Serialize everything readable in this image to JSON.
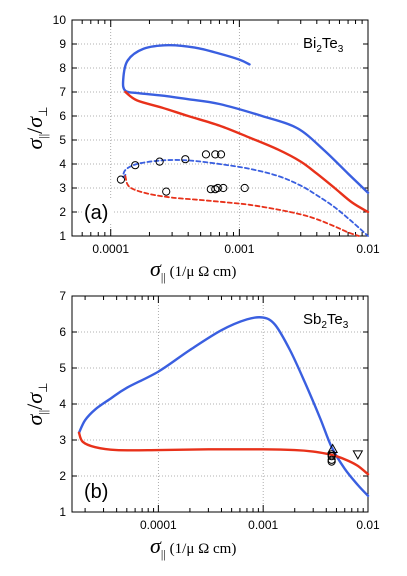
{
  "chart_data": [
    {
      "type": "line",
      "panel_label": "(a)",
      "material": {
        "base": "Bi",
        "sub1": "2",
        "mid": "Te",
        "sub2": "3"
      },
      "xlabel": {
        "symbol": "σ",
        "sub": "||",
        "unit": "(1/μ Ω cm)"
      },
      "ylabel": {
        "num": "σ",
        "num_sub": "||",
        "den": "σ",
        "den_sub": "⊥"
      },
      "xscale": "log",
      "xlim": [
        5e-05,
        0.01
      ],
      "ylim": [
        1,
        10
      ],
      "xticks": [
        {
          "v": 0.0001,
          "label": "0.0001"
        },
        {
          "v": 0.001,
          "label": "0.001"
        },
        {
          "v": 0.01,
          "label": "0.01"
        }
      ],
      "yticks": [
        1,
        2,
        3,
        4,
        5,
        6,
        7,
        8,
        9,
        10
      ],
      "grid": true,
      "series": [
        {
          "color": "#3a5fe0",
          "style": "solid",
          "x": [
            0.0012,
            0.001,
            0.0007,
            0.00045,
            0.00028,
            0.00018,
            0.000135,
            0.000125,
            0.00013,
            0.000165,
            0.00025,
            0.0004,
            0.0007,
            0.0015,
            0.0028,
            0.0045,
            0.007,
            0.01
          ],
          "y": [
            8.15,
            8.35,
            8.6,
            8.85,
            8.95,
            8.8,
            8.3,
            7.5,
            7.05,
            6.95,
            6.85,
            6.7,
            6.5,
            6.0,
            5.5,
            4.6,
            3.6,
            2.8
          ]
        },
        {
          "color": "#e8311a",
          "style": "solid",
          "x": [
            0.00013,
            0.00016,
            0.00025,
            0.0004,
            0.0007,
            0.0012,
            0.002,
            0.003,
            0.004,
            0.0055,
            0.0075,
            0.01
          ],
          "y": [
            7.0,
            6.65,
            6.35,
            6.0,
            5.6,
            5.1,
            4.6,
            4.1,
            3.6,
            3.0,
            2.4,
            2.0
          ]
        },
        {
          "color": "#3a5fe0",
          "style": "dashed",
          "x": [
            0.00013,
            0.000125,
            0.00013,
            0.00016,
            0.00025,
            0.0004,
            0.0007,
            0.0012,
            0.002,
            0.003,
            0.004,
            0.0055,
            0.0075,
            0.01
          ],
          "y": [
            3.55,
            3.45,
            3.75,
            4.0,
            4.15,
            4.15,
            4.0,
            3.8,
            3.5,
            3.1,
            2.7,
            2.2,
            1.6,
            1.0
          ]
        },
        {
          "color": "#e8311a",
          "style": "dashed",
          "x": [
            0.00013,
            0.000135,
            0.00015,
            0.0002,
            0.0003,
            0.0005,
            0.0008,
            0.0012,
            0.002,
            0.003,
            0.004,
            0.0055,
            0.007,
            0.0085
          ],
          "y": [
            3.5,
            3.15,
            2.95,
            2.75,
            2.6,
            2.5,
            2.4,
            2.3,
            2.1,
            1.9,
            1.7,
            1.4,
            1.15,
            1.0
          ]
        }
      ],
      "points": {
        "marker": "circle",
        "x": [
          0.00012,
          0.000155,
          0.00024,
          0.00038,
          0.00055,
          0.00065,
          0.00072,
          0.00027,
          0.0006,
          0.00065,
          0.00068,
          0.00075,
          0.0011
        ],
        "y": [
          3.35,
          3.95,
          4.1,
          4.2,
          4.4,
          4.4,
          4.4,
          2.85,
          2.95,
          2.95,
          3.0,
          3.0,
          3.0
        ]
      }
    },
    {
      "type": "line",
      "panel_label": "(b)",
      "material": {
        "base": "Sb",
        "sub1": "2",
        "mid": "Te",
        "sub2": "3"
      },
      "xlabel": {
        "symbol": "σ",
        "sub": "||",
        "unit": "(1/μ Ω cm)"
      },
      "ylabel": {
        "num": "σ",
        "num_sub": "||",
        "den": "σ",
        "den_sub": "⊥"
      },
      "xscale": "log",
      "xlim": [
        1.5e-05,
        0.01
      ],
      "ylim": [
        1,
        7
      ],
      "xticks": [
        {
          "v": 0.0001,
          "label": "0.0001"
        },
        {
          "v": 0.001,
          "label": "0.001"
        },
        {
          "v": 0.01,
          "label": "0.01"
        }
      ],
      "yticks": [
        1,
        2,
        3,
        4,
        5,
        6,
        7
      ],
      "grid": true,
      "series": [
        {
          "color": "#3a5fe0",
          "style": "solid",
          "x": [
            1.75e-05,
            2e-05,
            2.5e-05,
            3.5e-05,
            5e-05,
            0.0001,
            0.0002,
            0.0004,
            0.0007,
            0.001,
            0.0013,
            0.0018,
            0.0025,
            0.0035,
            0.0045,
            0.006,
            0.008,
            0.01
          ],
          "y": [
            3.2,
            3.55,
            3.85,
            4.15,
            4.45,
            4.9,
            5.5,
            6.05,
            6.35,
            6.4,
            6.2,
            5.5,
            4.6,
            3.6,
            2.8,
            2.2,
            1.75,
            1.45
          ]
        },
        {
          "color": "#e8311a",
          "style": "solid",
          "x": [
            1.75e-05,
            1.9e-05,
            2.5e-05,
            4e-05,
            0.0001,
            0.0003,
            0.001,
            0.002,
            0.003,
            0.004,
            0.005,
            0.0065,
            0.008,
            0.01
          ],
          "y": [
            3.2,
            2.95,
            2.8,
            2.72,
            2.72,
            2.74,
            2.74,
            2.72,
            2.68,
            2.62,
            2.55,
            2.42,
            2.28,
            2.05
          ]
        }
      ],
      "points": {
        "marker": "circle",
        "x": [
          0.0045,
          0.0045,
          0.0045,
          0.0045
        ],
        "y": [
          2.4,
          2.45,
          2.55,
          2.6
        ]
      },
      "triangles_up": {
        "x": [
          0.0046
        ],
        "y": [
          2.75
        ]
      },
      "triangles_down": {
        "x": [
          0.008
        ],
        "y": [
          2.6
        ]
      }
    }
  ]
}
